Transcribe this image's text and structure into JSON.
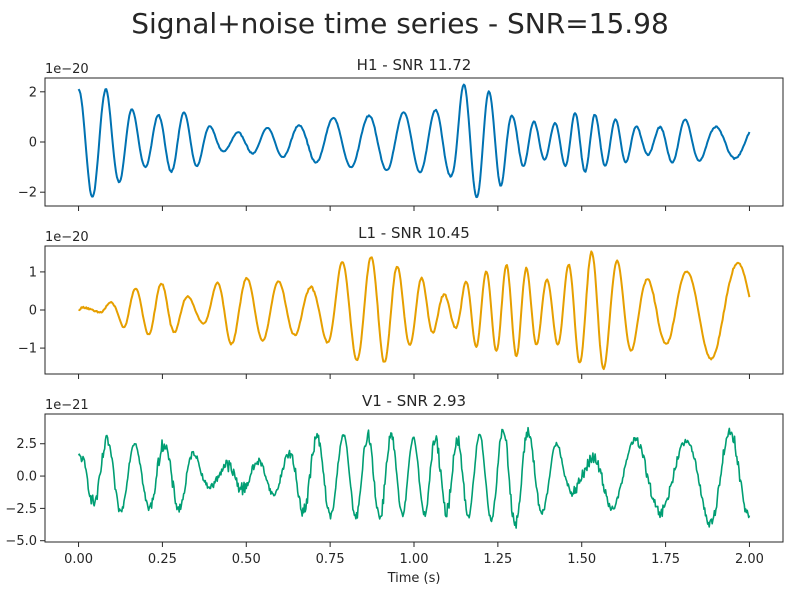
{
  "figure": {
    "suptitle": "Signal+noise time series - SNR=15.98"
  },
  "chart_data": [
    {
      "type": "line",
      "title": "H1 - SNR 11.72",
      "color": "#0072b2",
      "offset_label": "1e−20",
      "xlim": [
        -0.1,
        2.1
      ],
      "ylim": [
        -2.55,
        2.55
      ],
      "yticks": [
        -2,
        0,
        2
      ],
      "ytick_labels": [
        "−2",
        "0",
        "2"
      ],
      "xticks": [
        0,
        0.25,
        0.5,
        0.75,
        1.0,
        1.25,
        1.5,
        1.75,
        2.0
      ],
      "show_xtick_labels": false,
      "noise": 0.02,
      "envelope": {
        "t": [
          0,
          0.04,
          0.08,
          0.12,
          0.2,
          0.3,
          0.45,
          0.6,
          0.8,
          1.0,
          1.1,
          1.15,
          1.2,
          1.25,
          1.3,
          1.4,
          1.5,
          1.6,
          1.7,
          1.8,
          1.9,
          2.0
        ],
        "a": [
          2.1,
          2.2,
          2.1,
          1.6,
          1.0,
          1.2,
          0.35,
          0.6,
          1.0,
          1.2,
          1.3,
          2.3,
          2.2,
          1.8,
          1.0,
          0.7,
          1.2,
          0.9,
          0.5,
          0.9,
          0.6,
          0.7
        ]
      },
      "freq": 12.0,
      "phase": 1.57,
      "series": [
        {
          "x_range": [
            0,
            2.0
          ],
          "n_points": 700
        }
      ]
    },
    {
      "type": "line",
      "title": "L1 - SNR 10.45",
      "color": "#e69f00",
      "offset_label": "1e−20",
      "xlim": [
        -0.1,
        2.1
      ],
      "ylim": [
        -1.68,
        1.68
      ],
      "yticks": [
        -1,
        0,
        1
      ],
      "ytick_labels": [
        "−1",
        "0",
        "1"
      ],
      "xticks": [
        0,
        0.25,
        0.5,
        0.75,
        1.0,
        1.25,
        1.5,
        1.75,
        2.0
      ],
      "show_xtick_labels": false,
      "noise": 0.02,
      "envelope": {
        "t": [
          0,
          0.05,
          0.1,
          0.15,
          0.25,
          0.35,
          0.45,
          0.55,
          0.7,
          0.8,
          0.9,
          1.0,
          1.1,
          1.2,
          1.3,
          1.4,
          1.5,
          1.55,
          1.6,
          1.7,
          1.8,
          1.9,
          2.0
        ],
        "a": [
          0.08,
          0.05,
          0.2,
          0.55,
          0.7,
          0.3,
          0.9,
          0.8,
          0.6,
          1.3,
          1.4,
          0.9,
          0.4,
          1.0,
          1.2,
          0.8,
          1.4,
          1.6,
          1.3,
          0.8,
          1.0,
          1.3,
          1.2
        ]
      },
      "freq": 12.5,
      "phase": 0.0,
      "series": [
        {
          "x_range": [
            0,
            2.0
          ],
          "n_points": 700
        }
      ]
    },
    {
      "type": "line",
      "title": "V1 - SNR 2.93",
      "color": "#009e73",
      "offset_label": "1e−21",
      "xlim": [
        -0.1,
        2.1
      ],
      "ylim": [
        -5.1,
        4.8
      ],
      "yticks": [
        -5.0,
        -2.5,
        0.0,
        2.5
      ],
      "ytick_labels": [
        "−5.0",
        "−2.5",
        "0.0",
        "2.5"
      ],
      "xticks": [
        0,
        0.25,
        0.5,
        0.75,
        1.0,
        1.25,
        1.5,
        1.75,
        2.0
      ],
      "xtick_labels": [
        "0.00",
        "0.25",
        "0.50",
        "0.75",
        "1.00",
        "1.25",
        "1.50",
        "1.75",
        "2.00"
      ],
      "show_xtick_labels": true,
      "xlabel": "Time (s)",
      "noise": 0.35,
      "envelope": {
        "t": [
          0,
          0.1,
          0.2,
          0.3,
          0.4,
          0.5,
          0.6,
          0.7,
          0.8,
          0.9,
          1.0,
          1.1,
          1.2,
          1.3,
          1.4,
          1.5,
          1.6,
          1.7,
          1.8,
          1.9,
          2.0
        ],
        "a": [
          1.5,
          2.8,
          2.5,
          2.5,
          0.8,
          1.0,
          1.5,
          3.0,
          3.2,
          3.2,
          3.0,
          2.8,
          3.2,
          3.8,
          2.8,
          1.0,
          2.5,
          3.0,
          2.6,
          3.8,
          3.0
        ]
      },
      "freq": 12.0,
      "phase": 1.2,
      "series": [
        {
          "x_range": [
            0,
            2.0
          ],
          "n_points": 900
        }
      ]
    }
  ]
}
